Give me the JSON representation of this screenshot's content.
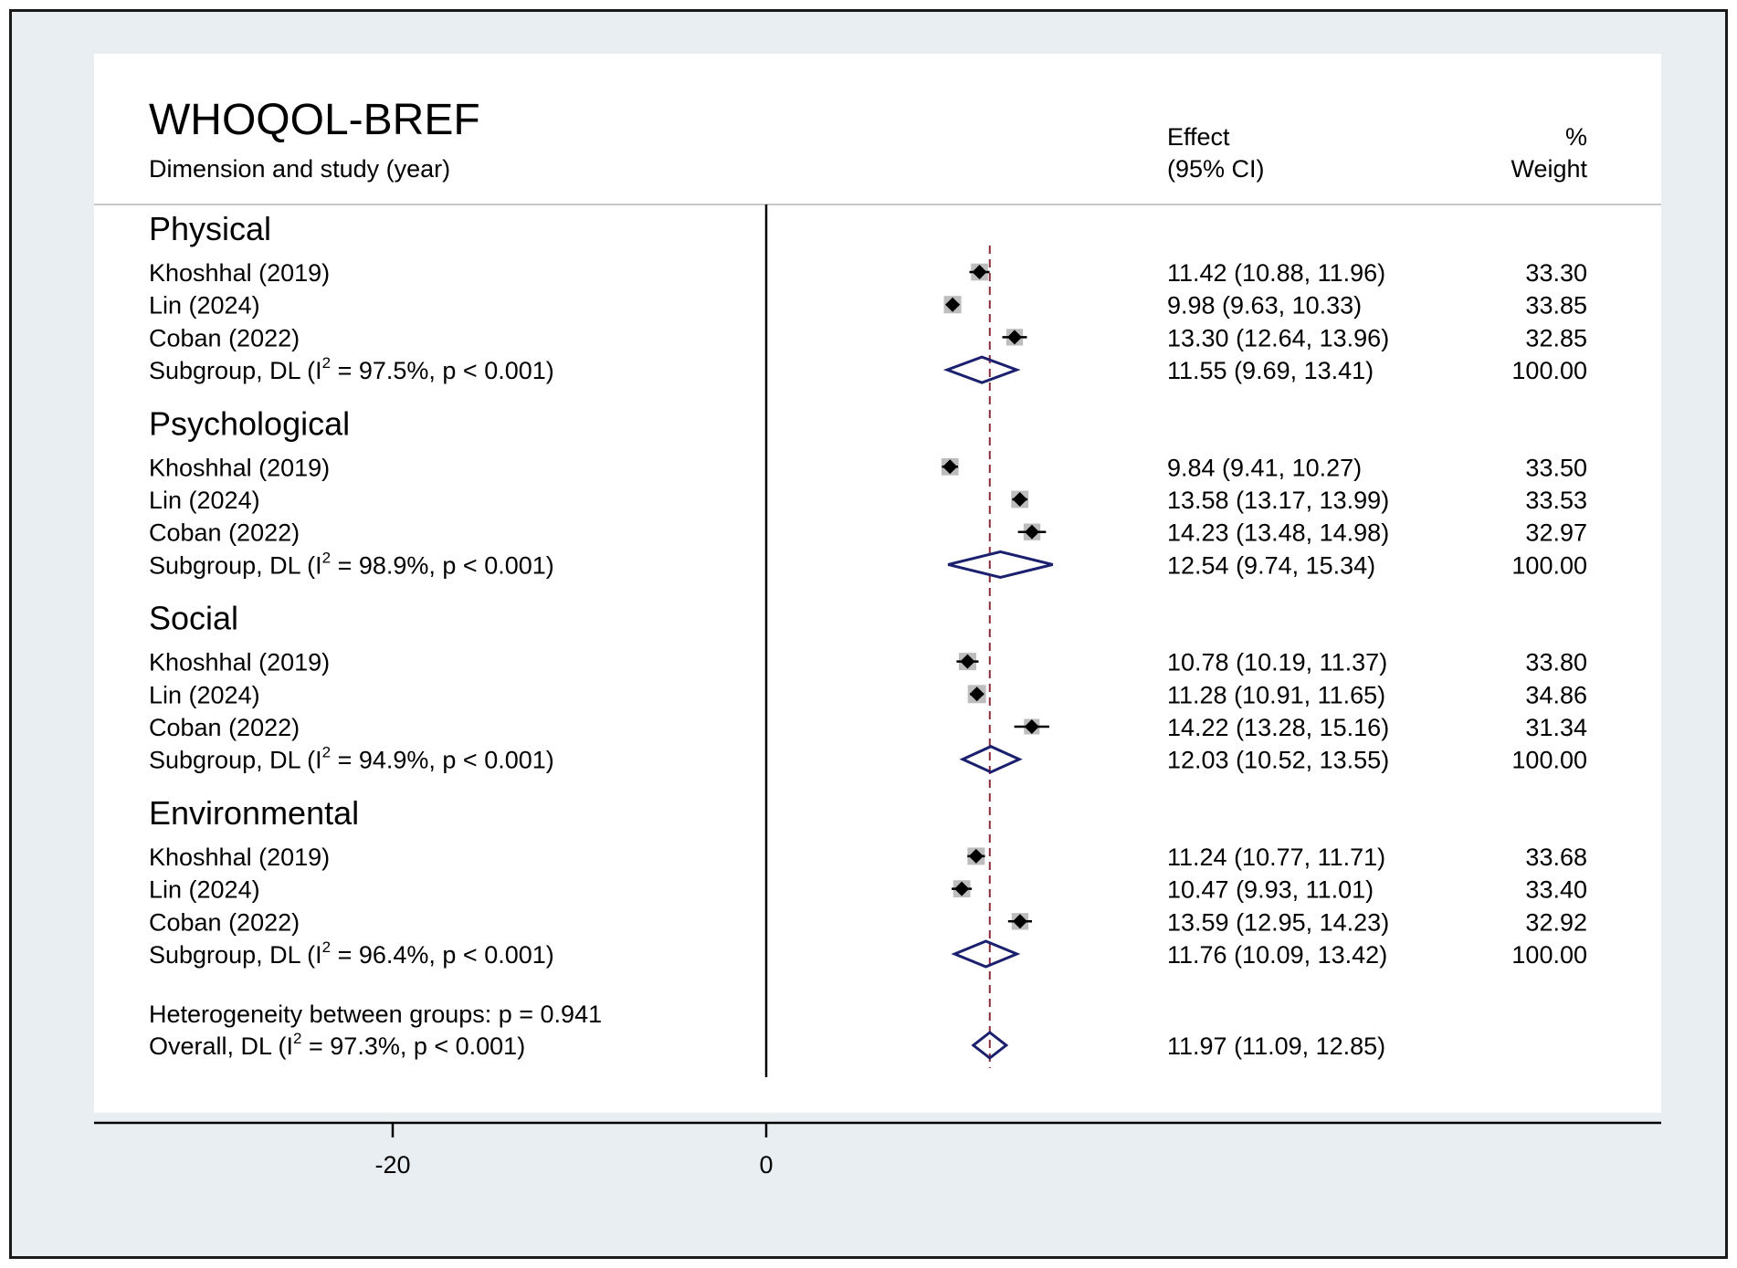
{
  "chart_data": {
    "type": "forest",
    "title": "WHOQOL-BREF",
    "columns": {
      "study_header": "Dimension and study (year)",
      "effect_header_1": "Effect",
      "effect_header_2": "(95% CI)",
      "weight_header_1": "%",
      "weight_header_2": "Weight"
    },
    "x_ticks": [
      {
        "label": "-20",
        "value": -20
      },
      {
        "label": "0",
        "value": 0
      }
    ],
    "null_line": 0,
    "overall_line": 11.97,
    "groups": [
      {
        "name": "Physical",
        "studies": [
          {
            "label": "Khoshhal (2019)",
            "effect": 11.42,
            "lower": 10.88,
            "upper": 11.96,
            "ci_text": "11.42 (10.88, 11.96)",
            "weight": "33.30"
          },
          {
            "label": "Lin (2024)",
            "effect": 9.98,
            "lower": 9.63,
            "upper": 10.33,
            "ci_text": "9.98 (9.63, 10.33)",
            "weight": "33.85"
          },
          {
            "label": "Coban (2022)",
            "effect": 13.3,
            "lower": 12.64,
            "upper": 13.96,
            "ci_text": "13.30 (12.64, 13.96)",
            "weight": "32.85"
          }
        ],
        "subgroup": {
          "label_pre": "Subgroup, DL (I",
          "label_post": " = 97.5%, p < 0.001)",
          "effect": 11.55,
          "lower": 9.69,
          "upper": 13.41,
          "ci_text": "11.55 (9.69, 13.41)",
          "weight": "100.00"
        }
      },
      {
        "name": "Psychological",
        "studies": [
          {
            "label": "Khoshhal (2019)",
            "effect": 9.84,
            "lower": 9.41,
            "upper": 10.27,
            "ci_text": "9.84 (9.41, 10.27)",
            "weight": "33.50"
          },
          {
            "label": "Lin (2024)",
            "effect": 13.58,
            "lower": 13.17,
            "upper": 13.99,
            "ci_text": "13.58 (13.17, 13.99)",
            "weight": "33.53"
          },
          {
            "label": "Coban (2022)",
            "effect": 14.23,
            "lower": 13.48,
            "upper": 14.98,
            "ci_text": "14.23 (13.48, 14.98)",
            "weight": "32.97"
          }
        ],
        "subgroup": {
          "label_pre": "Subgroup, DL (I",
          "label_post": " = 98.9%, p < 0.001)",
          "effect": 12.54,
          "lower": 9.74,
          "upper": 15.34,
          "ci_text": "12.54 (9.74, 15.34)",
          "weight": "100.00"
        }
      },
      {
        "name": "Social",
        "studies": [
          {
            "label": "Khoshhal (2019)",
            "effect": 10.78,
            "lower": 10.19,
            "upper": 11.37,
            "ci_text": "10.78 (10.19, 11.37)",
            "weight": "33.80"
          },
          {
            "label": "Lin (2024)",
            "effect": 11.28,
            "lower": 10.91,
            "upper": 11.65,
            "ci_text": "11.28 (10.91, 11.65)",
            "weight": "34.86"
          },
          {
            "label": "Coban (2022)",
            "effect": 14.22,
            "lower": 13.28,
            "upper": 15.16,
            "ci_text": "14.22 (13.28, 15.16)",
            "weight": "31.34"
          }
        ],
        "subgroup": {
          "label_pre": "Subgroup, DL (I",
          "label_post": " = 94.9%, p < 0.001)",
          "effect": 12.03,
          "lower": 10.52,
          "upper": 13.55,
          "ci_text": "12.03 (10.52, 13.55)",
          "weight": "100.00"
        }
      },
      {
        "name": "Environmental",
        "studies": [
          {
            "label": "Khoshhal (2019)",
            "effect": 11.24,
            "lower": 10.77,
            "upper": 11.71,
            "ci_text": "11.24 (10.77, 11.71)",
            "weight": "33.68"
          },
          {
            "label": "Lin (2024)",
            "effect": 10.47,
            "lower": 9.93,
            "upper": 11.01,
            "ci_text": "10.47 (9.93, 11.01)",
            "weight": "33.40"
          },
          {
            "label": "Coban (2022)",
            "effect": 13.59,
            "lower": 12.95,
            "upper": 14.23,
            "ci_text": "13.59 (12.95, 14.23)",
            "weight": "32.92"
          }
        ],
        "subgroup": {
          "label_pre": "Subgroup, DL (I",
          "label_post": " = 96.4%, p < 0.001)",
          "effect": 11.76,
          "lower": 10.09,
          "upper": 13.42,
          "ci_text": "11.76 (10.09, 13.42)",
          "weight": "100.00"
        }
      }
    ],
    "heterogeneity_text": "Heterogeneity between groups: p = 0.941",
    "overall": {
      "label_pre": "Overall, DL (I",
      "label_post": " = 97.3%, p < 0.001)",
      "effect": 11.97,
      "lower": 11.09,
      "upper": 12.85,
      "ci_text": "11.97 (11.09, 12.85)"
    },
    "superscript": "2",
    "colors": {
      "frame_bg": "#e8eef2",
      "plot_bg": "#ffffff",
      "marker": "#000000",
      "weight_box": "#bdbdbd",
      "diamond": "#1a1f6e",
      "overall_line": "#8b2c3a",
      "axis": "#000000"
    }
  }
}
